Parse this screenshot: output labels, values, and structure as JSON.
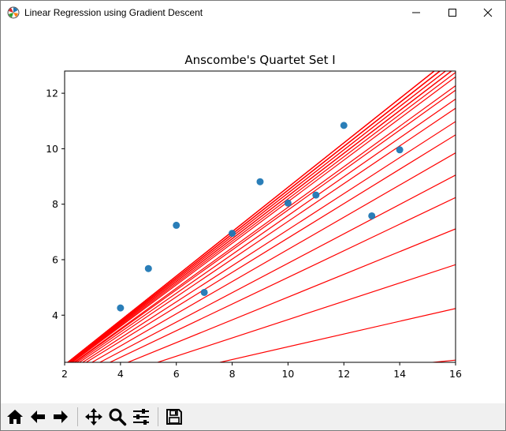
{
  "window": {
    "title": "Linear Regression using Gradient Descent",
    "icon": "matplotlib-logo-icon",
    "controls": [
      "minimize-icon",
      "maximize-icon",
      "close-icon"
    ]
  },
  "toolbar": {
    "buttons": [
      {
        "name": "home-button",
        "icon": "home-icon"
      },
      {
        "name": "back-button",
        "icon": "arrow-left-icon"
      },
      {
        "name": "forward-button",
        "icon": "arrow-right-icon"
      },
      {
        "name": "pan-button",
        "icon": "move-icon"
      },
      {
        "name": "zoom-button",
        "icon": "magnifier-icon"
      },
      {
        "name": "subplots-button",
        "icon": "sliders-icon"
      },
      {
        "name": "save-button",
        "icon": "floppy-disk-icon"
      }
    ]
  },
  "chart_data": {
    "type": "scatter",
    "title": "Anscombe's Quartet Set I",
    "xlabel": "",
    "ylabel": "",
    "xlim": [
      2,
      16
    ],
    "ylim": [
      2.3,
      12.8
    ],
    "xticks": [
      2,
      4,
      6,
      8,
      10,
      12,
      14,
      16
    ],
    "yticks": [
      4,
      6,
      8,
      10,
      12
    ],
    "grid": false,
    "scatter_color": "#1f77b4",
    "points": [
      {
        "x": 10,
        "y": 8.04
      },
      {
        "x": 8,
        "y": 6.95
      },
      {
        "x": 13,
        "y": 7.58
      },
      {
        "x": 9,
        "y": 8.81
      },
      {
        "x": 11,
        "y": 8.33
      },
      {
        "x": 14,
        "y": 9.96
      },
      {
        "x": 6,
        "y": 7.24
      },
      {
        "x": 4,
        "y": 4.26
      },
      {
        "x": 12,
        "y": 10.84
      },
      {
        "x": 7,
        "y": 4.82
      },
      {
        "x": 5,
        "y": 5.68
      }
    ],
    "line_color": "#ff0000",
    "lines": [
      {
        "m": 0.1,
        "b": 0.78
      },
      {
        "m": 0.23,
        "b": 0.56
      },
      {
        "m": 0.33,
        "b": 0.54
      },
      {
        "m": 0.41,
        "b": 0.55
      },
      {
        "m": 0.48,
        "b": 0.56
      },
      {
        "m": 0.53,
        "b": 0.57
      },
      {
        "m": 0.58,
        "b": 0.57
      },
      {
        "m": 0.62,
        "b": 0.58
      },
      {
        "m": 0.65,
        "b": 0.58
      },
      {
        "m": 0.68,
        "b": 0.58
      },
      {
        "m": 0.7,
        "b": 0.59
      },
      {
        "m": 0.72,
        "b": 0.59
      },
      {
        "m": 0.73,
        "b": 0.59
      },
      {
        "m": 0.75,
        "b": 0.59
      },
      {
        "m": 0.76,
        "b": 0.59
      },
      {
        "m": 0.77,
        "b": 0.59
      },
      {
        "m": 0.77,
        "b": 0.6
      },
      {
        "m": 0.78,
        "b": 0.6
      },
      {
        "m": 0.78,
        "b": 0.6
      },
      {
        "m": 0.79,
        "b": 0.6
      },
      {
        "m": 0.79,
        "b": 0.6
      },
      {
        "m": 0.79,
        "b": 0.6
      },
      {
        "m": 0.79,
        "b": 0.61
      },
      {
        "m": 0.8,
        "b": 0.61
      },
      {
        "m": 0.8,
        "b": 0.61
      },
      {
        "m": 0.8,
        "b": 0.61
      },
      {
        "m": 0.8,
        "b": 0.61
      },
      {
        "m": 0.8,
        "b": 0.61
      }
    ]
  }
}
